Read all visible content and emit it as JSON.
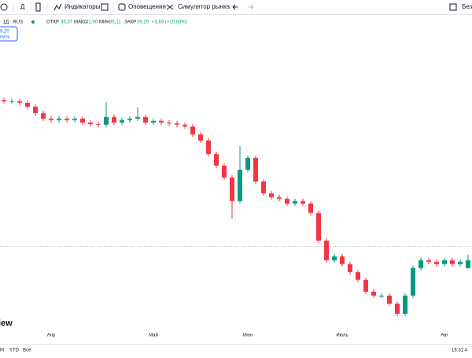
{
  "toolbar": {
    "interval": "Д",
    "indicators": "Индикаторы",
    "alerts": "Оповещения",
    "simulator": "Симулятор рынка",
    "right": "Без"
  },
  "legend": {
    "symbol": "· 1Д · RUS",
    "open_label": "ОТКР",
    "open": "35,37",
    "high_label": "МАКС",
    "high": "41,90",
    "low_label": "МИН",
    "low": "35,11",
    "close_label": "ЗАКР",
    "close": "39,20",
    "change": "+3,83 (+10,83%)"
  },
  "buy_button": {
    "price": "9,20",
    "label": "пить"
  },
  "watermark": "iew",
  "bottom_bar": {
    "range_m": "M",
    "range_ytd": "YTD",
    "range_all": "Все",
    "time": "16:31:4"
  },
  "chart_data": {
    "type": "candlestick",
    "up_color": "#089981",
    "down_color": "#f23645",
    "categories": [
      null,
      null,
      null,
      null,
      null,
      null,
      "Апр",
      null,
      null,
      null,
      null,
      null,
      null,
      null,
      null,
      null,
      null,
      null,
      null,
      "Май",
      null,
      null,
      null,
      null,
      null,
      null,
      null,
      null,
      null,
      null,
      null,
      "Июн",
      null,
      null,
      null,
      null,
      null,
      null,
      null,
      null,
      null,
      null,
      null,
      "Июль",
      null,
      null,
      null,
      null,
      null,
      null,
      null,
      null,
      null,
      null,
      null,
      null,
      "Авг",
      null,
      null,
      null
    ],
    "open": [
      117.5,
      116.9,
      116.9,
      116.1,
      114.2,
      111.1,
      108.4,
      107.7,
      108.4,
      107.7,
      108.4,
      106.5,
      105.7,
      105.4,
      109.2,
      106.5,
      107.7,
      108.4,
      109.2,
      106.5,
      107.3,
      106.5,
      106.1,
      105.4,
      104.6,
      100.7,
      97.7,
      91.1,
      85.4,
      79.6,
      68.1,
      83.4,
      89.2,
      77.7,
      71.9,
      70.0,
      69.2,
      66.9,
      68.1,
      66.9,
      62.3,
      48.8,
      39.2,
      41.1,
      37.3,
      33.4,
      29.6,
      23.8,
      21.9,
      21.9,
      18.0,
      13.0,
      21.9,
      35.4,
      39.2,
      38.4,
      37.3,
      39.2,
      37.3,
      35.37
    ],
    "high": [
      118.7,
      118.1,
      118.1,
      117.3,
      115.4,
      112.3,
      109.6,
      109.6,
      109.6,
      109.6,
      109.6,
      107.7,
      106.9,
      116.5,
      110.4,
      108.9,
      109.6,
      114.0,
      110.4,
      108.5,
      108.5,
      107.7,
      107.3,
      106.6,
      105.8,
      101.9,
      98.9,
      92.3,
      86.6,
      80.8,
      95.0,
      90.4,
      90.4,
      78.9,
      73.1,
      71.2,
      70.4,
      69.3,
      69.3,
      68.1,
      63.5,
      50.0,
      42.3,
      42.3,
      38.5,
      34.6,
      30.8,
      25.0,
      23.1,
      23.1,
      19.2,
      23.1,
      36.6,
      40.4,
      40.4,
      39.6,
      40.4,
      40.4,
      39.6,
      41.9
    ],
    "low": [
      115.7,
      115.7,
      114.9,
      113.0,
      109.9,
      107.2,
      106.5,
      106.5,
      106.5,
      106.5,
      105.3,
      104.5,
      104.2,
      104.2,
      105.3,
      105.3,
      106.5,
      107.2,
      105.3,
      105.3,
      105.3,
      104.9,
      104.2,
      103.4,
      99.5,
      96.5,
      89.9,
      84.2,
      78.4,
      59.5,
      66.9,
      82.2,
      76.5,
      70.7,
      68.8,
      68.0,
      65.7,
      65.7,
      65.7,
      61.1,
      47.6,
      38.0,
      38.0,
      36.1,
      32.2,
      28.4,
      22.6,
      20.7,
      20.7,
      16.8,
      11.8,
      11.8,
      20.7,
      34.2,
      37.2,
      36.1,
      36.1,
      36.1,
      36.1,
      35.11
    ],
    "close": [
      116.9,
      116.9,
      116.1,
      114.2,
      111.1,
      108.4,
      107.7,
      108.4,
      107.7,
      108.4,
      106.5,
      105.7,
      105.4,
      109.2,
      106.5,
      107.7,
      108.4,
      109.2,
      106.5,
      107.3,
      106.5,
      106.1,
      105.4,
      104.6,
      100.7,
      97.7,
      91.1,
      85.4,
      79.6,
      68.1,
      83.4,
      89.2,
      77.7,
      71.9,
      70.0,
      69.2,
      66.9,
      68.1,
      66.9,
      62.3,
      48.8,
      39.2,
      41.1,
      37.3,
      33.4,
      29.6,
      23.8,
      21.9,
      21.9,
      18.0,
      13.0,
      21.9,
      35.4,
      39.2,
      38.4,
      37.3,
      39.2,
      37.3,
      38.4,
      39.2
    ]
  }
}
